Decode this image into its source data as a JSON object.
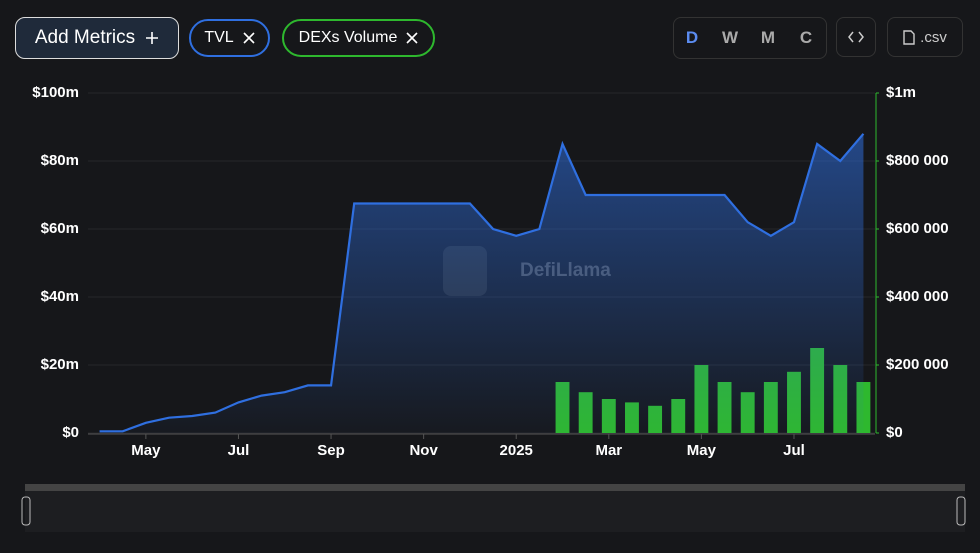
{
  "toolbar": {
    "add_button": "Add Metrics",
    "csv_button": ".csv",
    "periods": [
      "D",
      "W",
      "M",
      "C"
    ],
    "active_period": "D"
  },
  "watermark": "DefiLlama",
  "chart_data": {
    "type": "bar-line",
    "categories": [
      null,
      null,
      "May",
      null,
      null,
      null,
      "Jul",
      null,
      null,
      null,
      "Sep",
      null,
      null,
      null,
      "Nov",
      null,
      null,
      null,
      "2025",
      null,
      null,
      null,
      "Mar",
      null,
      null,
      null,
      "May",
      null,
      null,
      null,
      "Jul",
      null,
      null,
      null
    ],
    "series": [
      {
        "name": "TVL",
        "color": "#2f6fe0",
        "type": "line",
        "axis": "y",
        "values": [
          0.5,
          0.5,
          3,
          4.5,
          5,
          6,
          9,
          11,
          12,
          14,
          14,
          67.5,
          67.5,
          67.5,
          67.5,
          67.5,
          67.5,
          60,
          58,
          60,
          85,
          70,
          70,
          70,
          70,
          70,
          70,
          70,
          62,
          58,
          62,
          85,
          80,
          88
        ]
      },
      {
        "name": "DEXs Volume",
        "color": "#2eb82e",
        "type": "bar",
        "axis": "y2",
        "values": [
          0,
          0,
          0,
          0,
          0,
          0,
          0,
          0,
          0,
          0,
          0,
          0,
          0,
          0,
          0,
          0,
          0,
          0,
          0,
          0,
          150000,
          120000,
          100000,
          90000,
          80000,
          100000,
          200000,
          150000,
          120000,
          150000,
          180000,
          250000,
          200000,
          150000
        ]
      }
    ],
    "ylim": [
      0,
      100
    ],
    "yticks": [
      {
        "value": 0,
        "label": "$0"
      },
      {
        "value": 20,
        "label": "$20m"
      },
      {
        "value": 40,
        "label": "$40m"
      },
      {
        "value": 60,
        "label": "$60m"
      },
      {
        "value": 80,
        "label": "$80m"
      },
      {
        "value": 100,
        "label": "$100m"
      }
    ],
    "y2lim": [
      0,
      1000000
    ],
    "y2ticks": [
      {
        "value": 0,
        "label": "$0"
      },
      {
        "value": 200000,
        "label": "$200 000"
      },
      {
        "value": 400000,
        "label": "$400 000"
      },
      {
        "value": 600000,
        "label": "$600 000"
      },
      {
        "value": 800000,
        "label": "$800 000"
      },
      {
        "value": 1000000,
        "label": "$1m"
      }
    ],
    "grid": true
  }
}
